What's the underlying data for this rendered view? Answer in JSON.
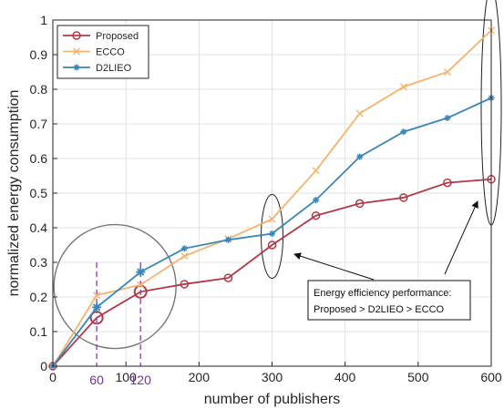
{
  "chart_data": {
    "type": "line",
    "xlabel": "number of publishers",
    "ylabel": "normalized energy consumption",
    "xlim": [
      0,
      600
    ],
    "ylim": [
      0,
      1
    ],
    "xticks": [
      "0",
      "100",
      "200",
      "300",
      "400",
      "500",
      "600"
    ],
    "yticks": [
      "0",
      "0.1",
      "0.2",
      "0.3",
      "0.4",
      "0.5",
      "0.6",
      "0.7",
      "0.8",
      "0.9",
      "1"
    ],
    "grid": true,
    "legend_position": "top-left",
    "special_ticks": [
      {
        "value": 60,
        "label": "60"
      },
      {
        "value": 120,
        "label": "120"
      }
    ],
    "series": [
      {
        "name": "Proposed",
        "color": "#b03a48",
        "marker": "circle",
        "x": [
          0,
          60,
          120,
          180,
          240,
          300,
          360,
          420,
          480,
          540,
          600
        ],
        "y": [
          0,
          0.14,
          0.215,
          0.237,
          0.255,
          0.35,
          0.435,
          0.47,
          0.487,
          0.53,
          0.54
        ]
      },
      {
        "name": "ECCO",
        "color": "#f5b36b",
        "marker": "x",
        "x": [
          0,
          60,
          120,
          180,
          240,
          300,
          360,
          420,
          480,
          540,
          600
        ],
        "y": [
          0,
          0.205,
          0.235,
          0.318,
          0.368,
          0.425,
          0.565,
          0.73,
          0.807,
          0.85,
          0.97
        ]
      },
      {
        "name": "D2LIEO",
        "color": "#3a86b6",
        "marker": "star",
        "x": [
          0,
          60,
          120,
          180,
          240,
          300,
          360,
          420,
          480,
          540,
          600
        ],
        "y": [
          0,
          0.17,
          0.272,
          0.34,
          0.365,
          0.383,
          0.48,
          0.605,
          0.677,
          0.717,
          0.775
        ]
      }
    ],
    "annotation": {
      "line1": "Energy efficiency performance:",
      "line2": "Proposed > D2LIEO > ECCO"
    }
  }
}
